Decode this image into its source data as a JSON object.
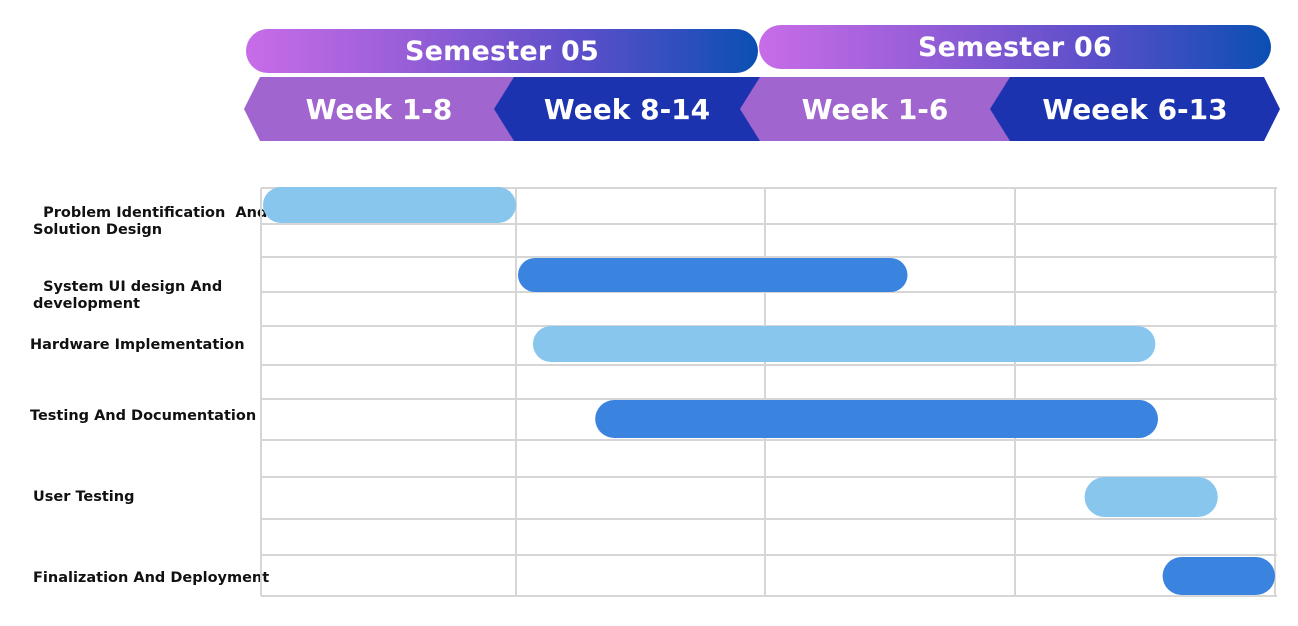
{
  "chart_data": {
    "type": "gantt",
    "header": {
      "semesters": [
        "Semester 05",
        "Semester 06"
      ],
      "periods": [
        "Week 1-8",
        "Week 8-14",
        "Week 1-6",
        "Weeek 6-13"
      ]
    },
    "tasks": [
      {
        "label": "Problem Identification  And\nSolution Design",
        "start": 0.0,
        "end": 1.0
      },
      {
        "label": "System UI design And\ndevelopment",
        "start": 1.0,
        "end": 2.57
      },
      {
        "label": "Hardware Implementation",
        "start": 1.06,
        "end": 3.54
      },
      {
        "label": "Testing And Documentation",
        "start": 1.31,
        "end": 3.55
      },
      {
        "label": "User Testing",
        "start": 3.26,
        "end": 3.78
      },
      {
        "label": "Finalization And Deployment",
        "start": 3.56,
        "end": 4.0
      }
    ],
    "colors": {
      "bar_light": "#88c6ee",
      "bar_dark": "#3a84e0",
      "grid": "#d6d6d6",
      "week_light": "#a065cf",
      "week_dark": "#1c33b0"
    }
  }
}
